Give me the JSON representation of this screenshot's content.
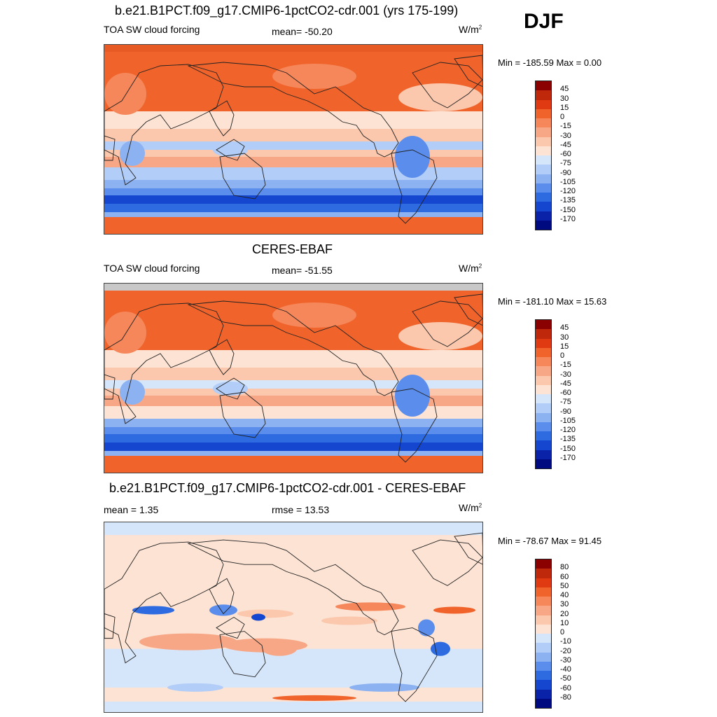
{
  "season": "DJF",
  "panels": [
    {
      "title": "b.e21.B1PCT.f09_g17.CMIP6-1pctCO2-cdr.001 (yrs 175-199)",
      "left_label": "TOA SW cloud forcing",
      "center_label": "mean= -50.20",
      "units": "W/m",
      "units_sup": "2",
      "minmax": "Min = -185.59 Max =   0.00",
      "colorbar_labels": [
        "45",
        "30",
        "15",
        "0",
        "-15",
        "-30",
        "-45",
        "-60",
        "-75",
        "-90",
        "-105",
        "-120",
        "-135",
        "-150",
        "-170"
      ],
      "colorbar_colors": [
        "#8b0000",
        "#c0280c",
        "#e03a12",
        "#f0642c",
        "#f5875a",
        "#f8a786",
        "#fbc8ad",
        "#fde3d3",
        "#d6e6fa",
        "#b2cdf7",
        "#8cb2f2",
        "#5b8eec",
        "#2e6be0",
        "#1446d0",
        "#0a22a8",
        "#000a80"
      ],
      "map_style": "model"
    },
    {
      "title": "CERES-EBAF",
      "left_label": "TOA SW cloud forcing",
      "center_label": "mean= -51.55",
      "units": "W/m",
      "units_sup": "2",
      "minmax": "Min = -181.10 Max =  15.63",
      "colorbar_labels": [
        "45",
        "30",
        "15",
        "0",
        "-15",
        "-30",
        "-45",
        "-60",
        "-75",
        "-90",
        "-105",
        "-120",
        "-135",
        "-150",
        "-170"
      ],
      "colorbar_colors": [
        "#8b0000",
        "#c0280c",
        "#e03a12",
        "#f0642c",
        "#f5875a",
        "#f8a786",
        "#fbc8ad",
        "#fde3d3",
        "#d6e6fa",
        "#b2cdf7",
        "#8cb2f2",
        "#5b8eec",
        "#2e6be0",
        "#1446d0",
        "#0a22a8",
        "#000a80"
      ],
      "map_style": "obs"
    },
    {
      "title": "b.e21.B1PCT.f09_g17.CMIP6-1pctCO2-cdr.001 - CERES-EBAF",
      "left_label": "mean =   1.35",
      "center_label": "rmse =  13.53",
      "units": "W/m",
      "units_sup": "2",
      "minmax": "Min = -78.67 Max =  91.45",
      "colorbar_labels": [
        "80",
        "60",
        "50",
        "40",
        "30",
        "20",
        "10",
        "0",
        "-10",
        "-20",
        "-30",
        "-40",
        "-50",
        "-60",
        "-80"
      ],
      "colorbar_colors": [
        "#8b0000",
        "#c0280c",
        "#e03a12",
        "#f0642c",
        "#f5875a",
        "#f8a786",
        "#fbc8ad",
        "#fde3d3",
        "#d6e6fa",
        "#b2cdf7",
        "#8cb2f2",
        "#5b8eec",
        "#2e6be0",
        "#1446d0",
        "#0a22a8",
        "#000a80"
      ],
      "map_style": "diff"
    }
  ]
}
